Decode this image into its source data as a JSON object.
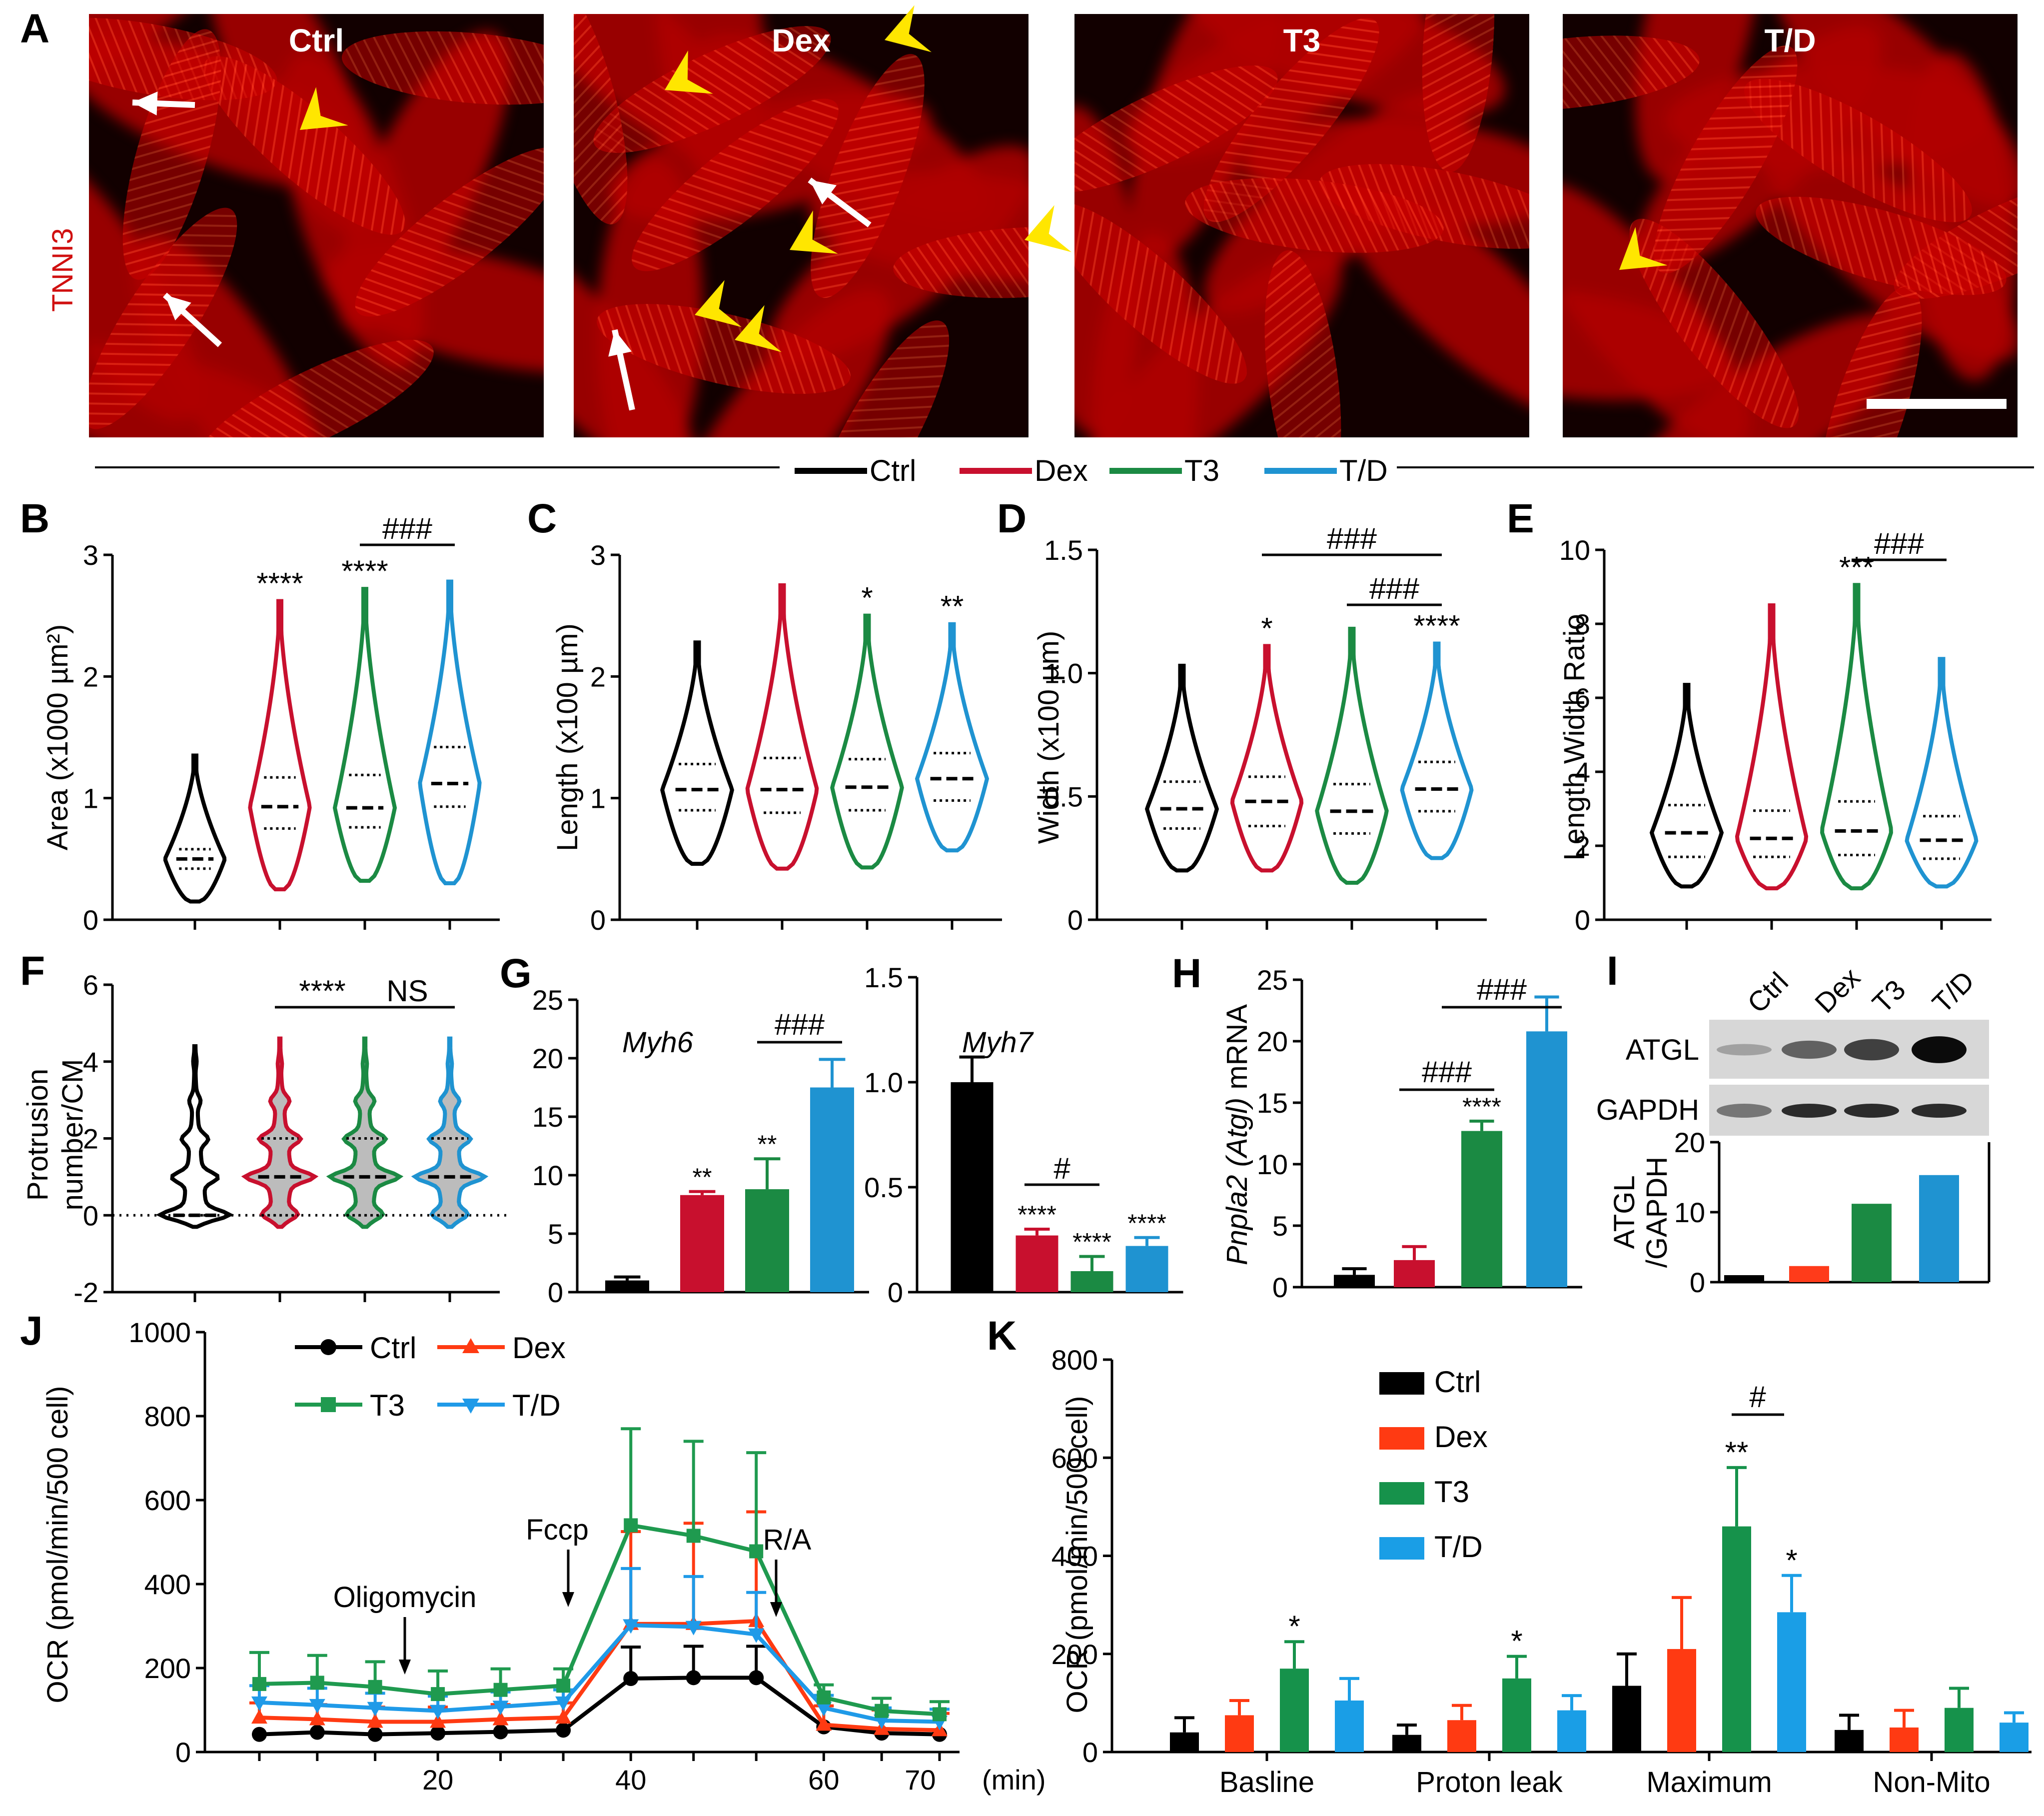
{
  "colors": {
    "Ctrl": "#000000",
    "Dex": "#c8102e",
    "T3": "#1b8a43",
    "T/D": "#1f93d1",
    "DexK": "#ff2a10",
    "T3K": "#16924b",
    "TDK": "#1a9ee6"
  },
  "panelA": {
    "label": "A",
    "stain": "TNNI3",
    "images": [
      {
        "title": "Ctrl"
      },
      {
        "title": "Dex"
      },
      {
        "title": "T3"
      },
      {
        "title": "T/D"
      }
    ]
  },
  "legend": {
    "items": [
      "Ctrl",
      "Dex",
      "T3",
      "T/D"
    ]
  },
  "chart_data": [
    {
      "panel": "B",
      "label": "B",
      "type": "violin",
      "ylabel": "Area (x1000 µm²)",
      "ylim": [
        0,
        3
      ],
      "yticks": [
        "0",
        "1",
        "2",
        "3"
      ],
      "groups": [
        "Ctrl",
        "Dex",
        "T3",
        "T/D"
      ],
      "median": [
        0.5,
        0.93,
        0.92,
        1.12
      ],
      "q1": [
        0.42,
        0.75,
        0.76,
        0.93
      ],
      "q3": [
        0.58,
        1.17,
        1.19,
        1.42
      ],
      "min": [
        0.15,
        0.25,
        0.32,
        0.3
      ],
      "max": [
        1.35,
        2.62,
        2.72,
        2.78
      ],
      "stats": [
        "",
        "****",
        "****",
        ""
      ],
      "bracket": {
        "from": "T3",
        "to": "T/D",
        "text": "###"
      }
    },
    {
      "panel": "C",
      "label": "C",
      "type": "violin",
      "ylabel": "Length (x100 µm)",
      "ylim": [
        0,
        3
      ],
      "yticks": [
        "0",
        "1",
        "2",
        "3"
      ],
      "groups": [
        "Ctrl",
        "Dex",
        "T3",
        "T/D"
      ],
      "median": [
        1.07,
        1.07,
        1.09,
        1.16
      ],
      "q1": [
        0.9,
        0.88,
        0.9,
        0.98
      ],
      "q3": [
        1.28,
        1.33,
        1.32,
        1.37
      ],
      "min": [
        0.46,
        0.42,
        0.43,
        0.57
      ],
      "max": [
        2.28,
        2.75,
        2.5,
        2.43
      ],
      "stats": [
        "",
        "",
        "*",
        "**"
      ]
    },
    {
      "panel": "D",
      "label": "D",
      "type": "violin",
      "ylabel": "Width (x100 µm)",
      "ylim": [
        0,
        1.5
      ],
      "yticks": [
        "0",
        "0.5",
        "1.0",
        "1.5"
      ],
      "groups": [
        "Ctrl",
        "Dex",
        "T3",
        "T/D"
      ],
      "median": [
        0.45,
        0.48,
        0.44,
        0.53
      ],
      "q1": [
        0.37,
        0.38,
        0.35,
        0.44
      ],
      "q3": [
        0.56,
        0.58,
        0.55,
        0.64
      ],
      "min": [
        0.2,
        0.2,
        0.15,
        0.25
      ],
      "max": [
        1.03,
        1.11,
        1.18,
        1.12
      ],
      "stats": [
        "",
        "*",
        "",
        "****"
      ],
      "bracket": [
        {
          "from": "Dex",
          "to": "T/D",
          "text": "###"
        },
        {
          "from": "T3",
          "to": "T/D",
          "text": "###"
        }
      ]
    },
    {
      "panel": "E",
      "label": "E",
      "type": "violin",
      "ylabel": "Length Width  Ratio",
      "ylim": [
        0,
        10
      ],
      "yticks": [
        "0",
        "2",
        "4",
        "6",
        "8",
        "10"
      ],
      "groups": [
        "Ctrl",
        "Dex",
        "T3",
        "T/D"
      ],
      "median": [
        2.35,
        2.2,
        2.4,
        2.15
      ],
      "q1": [
        1.7,
        1.7,
        1.75,
        1.65
      ],
      "q3": [
        3.1,
        2.95,
        3.2,
        2.8
      ],
      "min": [
        0.9,
        0.85,
        0.85,
        0.9
      ],
      "max": [
        6.35,
        8.5,
        9.05,
        7.05
      ],
      "stats": [
        "",
        "",
        "***",
        ""
      ],
      "bracket": {
        "from": "T3",
        "to": "T/D",
        "text": "###"
      }
    },
    {
      "panel": "F",
      "label": "F",
      "type": "violin",
      "ylabel": "Protrusion number/CM",
      "ylim": [
        -2,
        6
      ],
      "yticks": [
        "-2",
        "0",
        "2",
        "4",
        "6"
      ],
      "groups": [
        "Ctrl",
        "Dex",
        "T3",
        "T/D"
      ],
      "median": [
        0,
        1,
        1,
        1
      ],
      "q1": [
        0,
        0,
        0,
        0
      ],
      "q3": [
        0,
        2,
        2,
        2
      ],
      "min": [
        -0.3,
        -0.3,
        -0.3,
        -0.3
      ],
      "max": [
        4.4,
        4.6,
        4.6,
        4.6
      ],
      "bracket": [
        {
          "from": "Dex",
          "to": "T3",
          "text": "****"
        },
        {
          "from": "T3",
          "to": "T/D",
          "text": "NS"
        }
      ]
    },
    {
      "panel": "G1",
      "label": "G",
      "type": "bar",
      "title": "Myh6",
      "ylim": [
        0,
        25
      ],
      "yticks": [
        "0",
        "5",
        "10",
        "15",
        "20",
        "25"
      ],
      "categories": [
        "Ctrl",
        "Dex",
        "T3",
        "T/D"
      ],
      "values": [
        1.0,
        8.3,
        8.8,
        17.5
      ],
      "errors": [
        0.3,
        0.3,
        2.6,
        2.4
      ],
      "stats": [
        "",
        "**",
        "**",
        ""
      ],
      "bracket": {
        "from": "T3",
        "to": "T/D",
        "text": "###"
      }
    },
    {
      "panel": "G2",
      "type": "bar",
      "title": "Myh7",
      "ylim": [
        0,
        1.5
      ],
      "yticks": [
        "0",
        "0.5",
        "1.0",
        "1.5"
      ],
      "categories": [
        "Ctrl",
        "Dex",
        "T3",
        "T/D"
      ],
      "values": [
        1.0,
        0.27,
        0.1,
        0.22
      ],
      "errors": [
        0.12,
        0.03,
        0.07,
        0.04
      ],
      "stats": [
        "",
        "****",
        "****",
        "****"
      ],
      "bracket": {
        "from": "Dex",
        "to": "T3",
        "text": "#"
      }
    },
    {
      "panel": "H",
      "label": "H",
      "type": "bar",
      "ylabel": "Pnpla2 (Atgl) mRNA",
      "ylabel_italic": "Pnpla2 (Atgl)",
      "ylabel_plain": " mRNA",
      "ylim": [
        0,
        25
      ],
      "yticks": [
        "0",
        "5",
        "10",
        "15",
        "20",
        "25"
      ],
      "categories": [
        "Ctrl",
        "Dex",
        "T3",
        "T/D"
      ],
      "values": [
        1.0,
        2.2,
        12.7,
        20.8
      ],
      "errors": [
        0.5,
        1.1,
        0.8,
        2.8
      ],
      "stats": [
        "",
        "",
        "****",
        ""
      ],
      "bracket": [
        {
          "from": "Dex",
          "to": "T3",
          "text": "###"
        },
        {
          "from": "T3",
          "to": "T/D",
          "text": "###"
        }
      ]
    },
    {
      "panel": "I",
      "label": "I",
      "type": "bar",
      "ylabel": "ATGL /GAPDH",
      "ylabel_1": "ATGL",
      "ylabel_2": "/GAPDH",
      "ylim": [
        0,
        20
      ],
      "yticks": [
        "0",
        "10",
        "20"
      ],
      "blot_lanes": [
        "Ctrl",
        "Dex",
        "T3",
        "T/D"
      ],
      "blot_rows": [
        "ATGL",
        "GAPDH"
      ],
      "categories": [
        "Ctrl",
        "Dex",
        "T3",
        "T/D"
      ],
      "values": [
        1.0,
        2.3,
        11.2,
        15.3
      ]
    },
    {
      "panel": "J",
      "label": "J",
      "type": "line",
      "ylabel": "OCR (pmol/min/500 cell)",
      "xlabel": "(min)",
      "ylim": [
        0,
        1000
      ],
      "yticks": [
        "0",
        "200",
        "400",
        "600",
        "800",
        "1000"
      ],
      "xlim": [
        0,
        72
      ],
      "xticks": [
        "20",
        "40",
        "60",
        "70"
      ],
      "xtick_values": [
        20,
        40,
        60,
        70
      ],
      "x": [
        1.5,
        7.5,
        13.5,
        20,
        26.5,
        33,
        40,
        46.5,
        53,
        60,
        66,
        72
      ],
      "series": [
        {
          "name": "Ctrl",
          "values": [
            42,
            47,
            42,
            45,
            48,
            52,
            175,
            177,
            177,
            60,
            45,
            42
          ],
          "errors": [
            0,
            0,
            0,
            0,
            0,
            0,
            75,
            75,
            75,
            0,
            0,
            0
          ]
        },
        {
          "name": "Dex",
          "values": [
            82,
            78,
            72,
            72,
            78,
            82,
            305,
            305,
            312,
            65,
            55,
            52
          ],
          "errors": [
            35,
            35,
            35,
            35,
            35,
            35,
            220,
            240,
            260,
            45,
            45,
            40
          ]
        },
        {
          "name": "T3",
          "values": [
            162,
            165,
            155,
            138,
            148,
            158,
            540,
            515,
            478,
            130,
            98,
            90
          ],
          "errors": [
            75,
            65,
            60,
            55,
            50,
            40,
            230,
            225,
            235,
            30,
            30,
            30
          ]
        },
        {
          "name": "T/D",
          "values": [
            118,
            112,
            105,
            98,
            108,
            118,
            302,
            298,
            280,
            105,
            75,
            72
          ],
          "errors": [
            40,
            40,
            35,
            35,
            35,
            30,
            135,
            120,
            100,
            30,
            30,
            30
          ]
        }
      ],
      "annotations": [
        "Oligomycin",
        "Fccp",
        "R/A"
      ]
    },
    {
      "panel": "K",
      "label": "K",
      "type": "bar",
      "ylabel": "OCR (pmol/min/500 cell)",
      "ylim": [
        0,
        800
      ],
      "yticks": [
        "0",
        "200",
        "400",
        "600",
        "800"
      ],
      "categories": [
        "Basline",
        "Proton leak",
        "Maximum",
        "Non-Mito"
      ],
      "series": [
        {
          "name": "Ctrl",
          "values": [
            40,
            35,
            135,
            45
          ],
          "errors": [
            30,
            20,
            65,
            30
          ]
        },
        {
          "name": "Dex",
          "values": [
            75,
            65,
            210,
            50
          ],
          "errors": [
            30,
            30,
            105,
            35
          ]
        },
        {
          "name": "T3",
          "values": [
            170,
            150,
            460,
            90
          ],
          "errors": [
            55,
            45,
            120,
            40
          ]
        },
        {
          "name": "T/D",
          "values": [
            105,
            85,
            285,
            60
          ],
          "errors": [
            45,
            30,
            75,
            20
          ]
        }
      ],
      "stats": {
        "T3": [
          "*",
          "*",
          "**",
          ""
        ],
        "T/D": [
          "",
          "",
          "*",
          ""
        ]
      },
      "bracket": {
        "text": "#"
      },
      "legend": [
        "Ctrl",
        "Dex",
        "T3",
        "T/D"
      ]
    }
  ]
}
